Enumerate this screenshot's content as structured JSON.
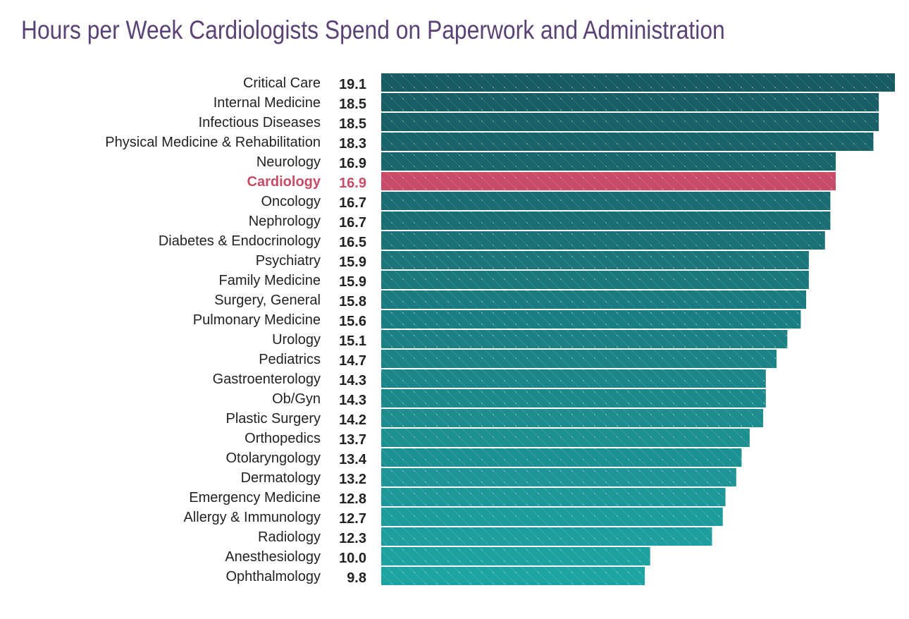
{
  "chart_data": {
    "type": "bar",
    "orientation": "horizontal",
    "title": "Hours per Week Cardiologists Spend on Paperwork and Administration",
    "categories": [
      "Critical Care",
      "Internal Medicine",
      "Infectious Diseases",
      "Physical Medicine & Rehabilitation",
      "Neurology",
      "Cardiology",
      "Oncology",
      "Nephrology",
      "Diabetes & Endocrinology",
      "Psychiatry",
      "Family Medicine",
      "Surgery, General",
      "Pulmonary Medicine",
      "Urology",
      "Pediatrics",
      "Gastroenterology",
      "Ob/Gyn",
      "Plastic Surgery",
      "Orthopedics",
      "Otolaryngology",
      "Dermatology",
      "Emergency Medicine",
      "Allergy & Immunology",
      "Radiology",
      "Anesthesiology",
      "Ophthalmology"
    ],
    "values": [
      19.1,
      18.5,
      18.5,
      18.3,
      16.9,
      16.9,
      16.7,
      16.7,
      16.5,
      15.9,
      15.9,
      15.8,
      15.6,
      15.1,
      14.7,
      14.3,
      14.3,
      14.2,
      13.7,
      13.4,
      13.2,
      12.8,
      12.7,
      12.3,
      10.0,
      9.8
    ],
    "value_labels": [
      "19.1",
      "18.5",
      "18.5",
      "18.3",
      "16.9",
      "16.9",
      "16.7",
      "16.7",
      "16.5",
      "15.9",
      "15.9",
      "15.8",
      "15.6",
      "15.1",
      "14.7",
      "14.3",
      "14.3",
      "14.2",
      "13.7",
      "13.4",
      "13.2",
      "12.8",
      "12.7",
      "12.3",
      "10.0",
      "9.8"
    ],
    "highlight": "Cardiology",
    "xlim": [
      0,
      19.1
    ],
    "grid": false,
    "legend": "none",
    "colors": {
      "gradient_top": "#175a62",
      "gradient_bottom": "#1ea3a3",
      "highlight": "#c84b67",
      "title": "#5b4275"
    }
  }
}
